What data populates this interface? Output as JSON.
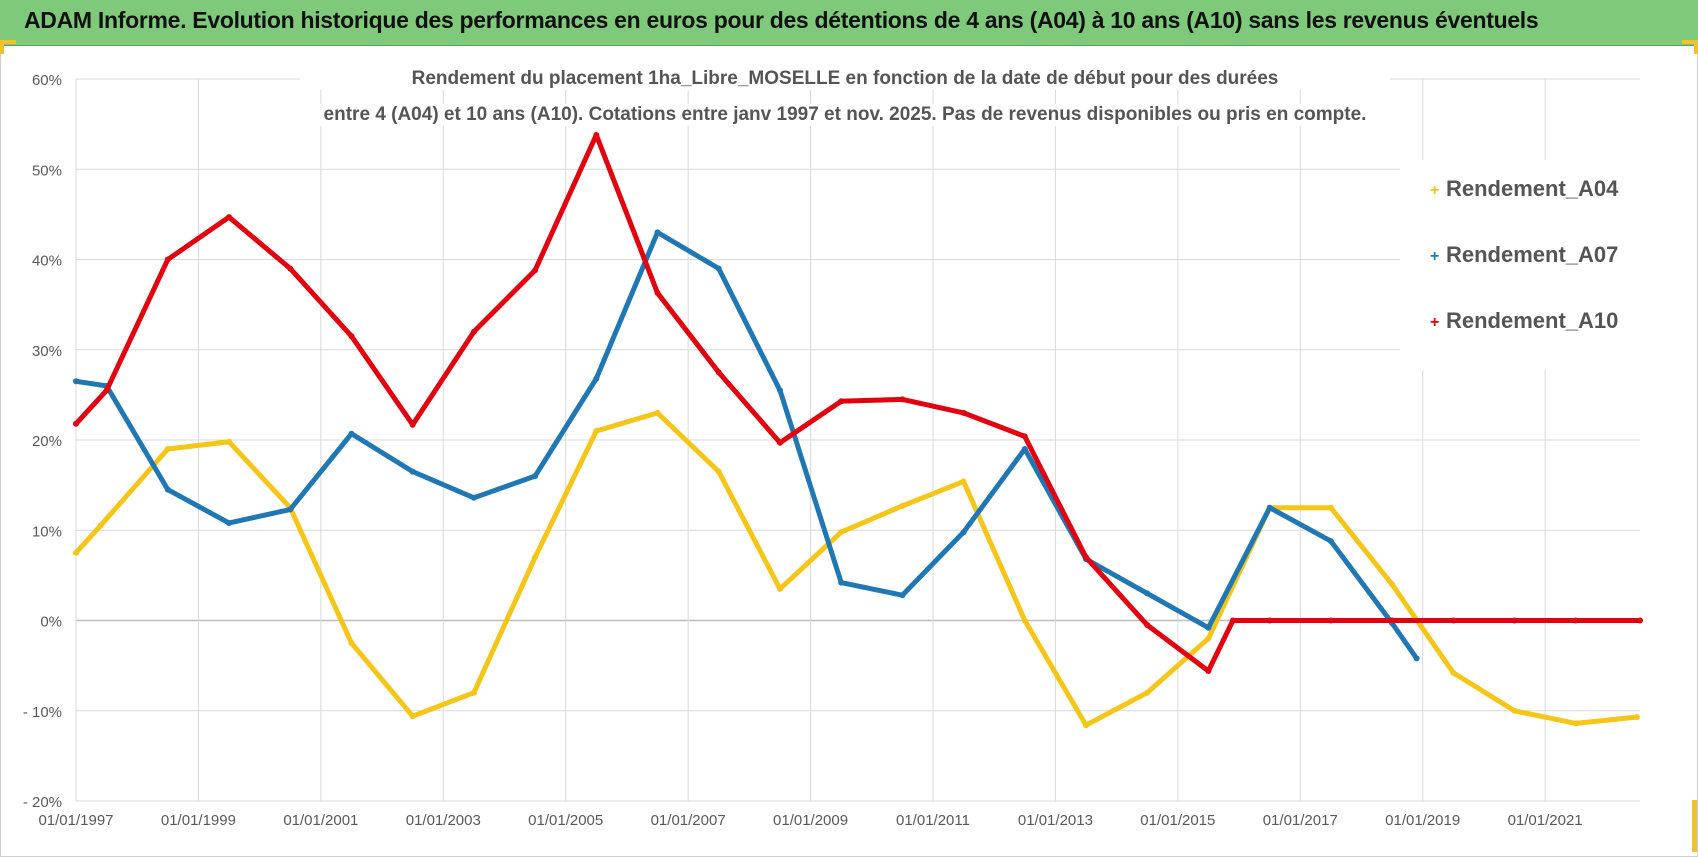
{
  "banner": {
    "title": "ADAM Informe. Evolution historique des performances en euros pour des détentions de 4 ans (A04) à 10 ans (A10) sans les revenus éventuels",
    "color": "#7fc97a"
  },
  "chart_data": {
    "type": "line",
    "title_lines": [
      "Rendement du placement 1ha_Libre_MOSELLE en fonction de la date de début pour des durées",
      "entre 4 (A04) et 10 ans (A10).  Cotations entre janv 1997 et nov. 2025. Pas de revenus disponibles ou pris en compte."
    ],
    "xlabel": "",
    "ylabel": "",
    "xlim": [
      1997.0,
      2022.55
    ],
    "ylim": [
      -20,
      60
    ],
    "y_ticks": [
      60,
      50,
      40,
      30,
      20,
      10,
      0,
      -10,
      -20
    ],
    "y_tick_labels": [
      "60%",
      "50%",
      "40%",
      "30%",
      "20%",
      "10%",
      "0%",
      "- 10%",
      "- 20%"
    ],
    "x_ticks": [
      1997,
      1999,
      2001,
      2003,
      2005,
      2007,
      2009,
      2011,
      2013,
      2015,
      2017,
      2019,
      2021
    ],
    "x_tick_labels": [
      "01/01/1997",
      "01/01/1999",
      "01/01/2001",
      "01/01/2003",
      "01/01/2005",
      "01/01/2007",
      "01/01/2009",
      "01/01/2011",
      "01/01/2013",
      "01/01/2015",
      "01/01/2017",
      "01/01/2019",
      "01/01/2021"
    ],
    "grid": true,
    "legend_position": "right",
    "series": [
      {
        "name": "Rendement_A04",
        "color": "#f5c518",
        "x": [
          1997.0,
          1997.4,
          1998.5,
          1999.5,
          2000.5,
          2001.5,
          2002.5,
          2003.5,
          2004.5,
          2005.5,
          2006.5,
          2007.5,
          2008.5,
          2009.5,
          2010.5,
          2011.5,
          2012.5,
          2013.5,
          2014.5,
          2015.5,
          2016.5,
          2017.5,
          2018.5,
          2019.5,
          2020.5,
          2021.5,
          2022.5
        ],
        "y": [
          7.5,
          10.5,
          19.0,
          19.8,
          12.5,
          -2.5,
          -10.6,
          -8.0,
          7.0,
          21.0,
          23.0,
          16.5,
          3.5,
          9.8,
          12.7,
          15.4,
          0.0,
          -11.6,
          -8.0,
          -2.0,
          12.5,
          12.5,
          4.0,
          -5.8,
          -10.0,
          -11.4,
          -10.7
        ]
      },
      {
        "name": "Rendement_A07",
        "color": "#1f77b4",
        "x": [
          1997.0,
          1997.5,
          1998.5,
          1999.5,
          2000.5,
          2001.5,
          2002.5,
          2003.5,
          2004.5,
          2005.5,
          2006.5,
          2007.5,
          2008.5,
          2009.5,
          2010.5,
          2011.5,
          2012.5,
          2013.5,
          2014.5,
          2015.5,
          2016.5,
          2017.5,
          2018.5,
          2018.9
        ],
        "y": [
          26.5,
          26.0,
          14.5,
          10.8,
          12.3,
          20.7,
          16.5,
          13.6,
          16.0,
          26.8,
          43.0,
          39.0,
          25.5,
          4.2,
          2.8,
          9.8,
          19.0,
          6.8,
          3.0,
          -0.8,
          12.5,
          8.8,
          -0.3,
          -4.2
        ]
      },
      {
        "name": "Rendement_A10",
        "color": "#e3000f",
        "x": [
          1997.0,
          1997.5,
          1998.5,
          1999.5,
          2000.5,
          2001.5,
          2002.5,
          2003.5,
          2004.5,
          2005.5,
          2006.5,
          2007.5,
          2008.5,
          2009.5,
          2010.5,
          2011.5,
          2012.5,
          2013.5,
          2014.5,
          2015.5,
          2015.9,
          2016.5,
          2017.5,
          2018.5,
          2019.5,
          2020.5,
          2021.5,
          2022.55
        ],
        "y": [
          21.8,
          25.5,
          40.0,
          44.7,
          39.0,
          31.5,
          21.7,
          32.0,
          38.8,
          53.8,
          36.3,
          27.5,
          19.7,
          24.3,
          24.5,
          23.0,
          20.4,
          7.0,
          -0.5,
          -5.6,
          0.0,
          0.0,
          0.0,
          0.0,
          0.0,
          0.0,
          0.0,
          0.0
        ]
      }
    ]
  }
}
